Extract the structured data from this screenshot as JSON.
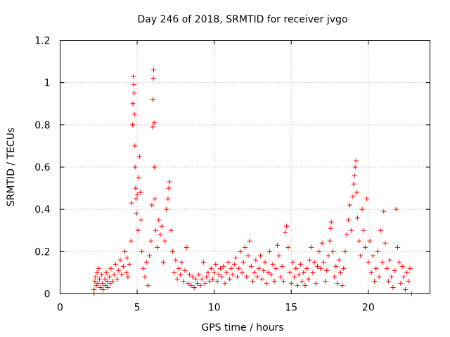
{
  "chart_data": {
    "type": "scatter",
    "title": "Day 246 of 2018, SRMTID for receiver jvgo",
    "xlabel": "GPS time / hours",
    "ylabel": "SRMTID / TECUs",
    "xlim": [
      0,
      24
    ],
    "ylim": [
      0,
      1.2
    ],
    "xticks": [
      0,
      5,
      10,
      15,
      20
    ],
    "xtick_labels": [
      "0",
      "5",
      "10",
      "15",
      "20"
    ],
    "yticks": [
      0,
      0.2,
      0.4,
      0.6,
      0.8,
      1,
      1.2
    ],
    "ytick_labels": [
      "0",
      "0.2",
      "0.4",
      "0.6",
      "0.8",
      "1",
      "1.2"
    ],
    "grid": true,
    "legend": false,
    "marker": "plus",
    "series": [
      {
        "name": "SRMTID",
        "color": "#ff0000",
        "points": [
          [
            2.2,
            0.0
          ],
          [
            2.2,
            0.02
          ],
          [
            2.25,
            0.06
          ],
          [
            2.3,
            0.08
          ],
          [
            2.35,
            0.04
          ],
          [
            2.4,
            0.1
          ],
          [
            2.45,
            0.05
          ],
          [
            2.5,
            0.12
          ],
          [
            2.55,
            0.07
          ],
          [
            2.6,
            0.03
          ],
          [
            2.7,
            0.09
          ],
          [
            2.75,
            0.05
          ],
          [
            2.8,
            0.02
          ],
          [
            2.9,
            0.07
          ],
          [
            2.95,
            0.04
          ],
          [
            3.0,
            0.1
          ],
          [
            3.05,
            0.06
          ],
          [
            3.1,
            0.03
          ],
          [
            3.2,
            0.08
          ],
          [
            3.25,
            0.05
          ],
          [
            3.3,
            0.12
          ],
          [
            3.4,
            0.06
          ],
          [
            3.5,
            0.09
          ],
          [
            3.6,
            0.14
          ],
          [
            3.7,
            0.07
          ],
          [
            3.8,
            0.11
          ],
          [
            3.9,
            0.16
          ],
          [
            4.0,
            0.09
          ],
          [
            4.1,
            0.13
          ],
          [
            4.2,
            0.2
          ],
          [
            4.3,
            0.1
          ],
          [
            4.35,
            0.17
          ],
          [
            4.4,
            0.08
          ],
          [
            4.5,
            0.14
          ],
          [
            4.6,
            0.25
          ],
          [
            4.65,
            0.43
          ],
          [
            4.7,
            0.8
          ],
          [
            4.72,
            0.9
          ],
          [
            4.75,
            1.03
          ],
          [
            4.78,
            0.99
          ],
          [
            4.8,
            0.95
          ],
          [
            4.82,
            0.85
          ],
          [
            4.85,
            0.7
          ],
          [
            4.87,
            0.6
          ],
          [
            4.9,
            0.5
          ],
          [
            4.92,
            0.45
          ],
          [
            4.95,
            0.38
          ],
          [
            5.0,
            0.47
          ],
          [
            5.05,
            0.3
          ],
          [
            5.1,
            0.55
          ],
          [
            5.15,
            0.65
          ],
          [
            5.2,
            0.48
          ],
          [
            5.25,
            0.35
          ],
          [
            5.3,
            0.2
          ],
          [
            5.4,
            0.12
          ],
          [
            5.5,
            0.08
          ],
          [
            5.6,
            0.15
          ],
          [
            5.7,
            0.04
          ],
          [
            5.8,
            0.18
          ],
          [
            5.9,
            0.25
          ],
          [
            5.95,
            0.42
          ],
          [
            6.0,
            0.79
          ],
          [
            6.02,
            0.92
          ],
          [
            6.05,
            1.02
          ],
          [
            6.07,
            1.06
          ],
          [
            6.1,
            0.81
          ],
          [
            6.12,
            0.6
          ],
          [
            6.15,
            0.45
          ],
          [
            6.2,
            0.3
          ],
          [
            6.3,
            0.22
          ],
          [
            6.4,
            0.35
          ],
          [
            6.5,
            0.28
          ],
          [
            6.6,
            0.32
          ],
          [
            6.7,
            0.15
          ],
          [
            6.8,
            0.25
          ],
          [
            6.9,
            0.4
          ],
          [
            7.0,
            0.45
          ],
          [
            7.05,
            0.5
          ],
          [
            7.1,
            0.53
          ],
          [
            7.2,
            0.3
          ],
          [
            7.3,
            0.2
          ],
          [
            7.4,
            0.1
          ],
          [
            7.5,
            0.16
          ],
          [
            7.6,
            0.07
          ],
          [
            7.7,
            0.12
          ],
          [
            7.8,
            0.09
          ],
          [
            7.9,
            0.15
          ],
          [
            8.0,
            0.06
          ],
          [
            8.1,
            0.11
          ],
          [
            8.2,
            0.22
          ],
          [
            8.3,
            0.05
          ],
          [
            8.4,
            0.09
          ],
          [
            8.5,
            0.04
          ],
          [
            8.6,
            0.08
          ],
          [
            8.7,
            0.03
          ],
          [
            8.8,
            0.07
          ],
          [
            8.9,
            0.05
          ],
          [
            9.0,
            0.09
          ],
          [
            9.1,
            0.04
          ],
          [
            9.2,
            0.07
          ],
          [
            9.3,
            0.15
          ],
          [
            9.4,
            0.05
          ],
          [
            9.5,
            0.08
          ],
          [
            9.6,
            0.1
          ],
          [
            9.7,
            0.06
          ],
          [
            9.8,
            0.12
          ],
          [
            9.9,
            0.07
          ],
          [
            10.0,
            0.1
          ],
          [
            10.1,
            0.14
          ],
          [
            10.2,
            0.06
          ],
          [
            10.3,
            0.09
          ],
          [
            10.4,
            0.12
          ],
          [
            10.5,
            0.08
          ],
          [
            10.6,
            0.13
          ],
          [
            10.7,
            0.05
          ],
          [
            10.8,
            0.1
          ],
          [
            10.9,
            0.15
          ],
          [
            11.0,
            0.07
          ],
          [
            11.1,
            0.12
          ],
          [
            11.2,
            0.09
          ],
          [
            11.3,
            0.14
          ],
          [
            11.4,
            0.17
          ],
          [
            11.5,
            0.08
          ],
          [
            11.6,
            0.12
          ],
          [
            11.7,
            0.2
          ],
          [
            11.8,
            0.1
          ],
          [
            11.9,
            0.15
          ],
          [
            12.0,
            0.22
          ],
          [
            12.1,
            0.08
          ],
          [
            12.2,
            0.18
          ],
          [
            12.3,
            0.25
          ],
          [
            12.4,
            0.13
          ],
          [
            12.5,
            0.06
          ],
          [
            12.6,
            0.1
          ],
          [
            12.7,
            0.16
          ],
          [
            12.8,
            0.08
          ],
          [
            12.9,
            0.12
          ],
          [
            13.0,
            0.18
          ],
          [
            13.1,
            0.07
          ],
          [
            13.2,
            0.11
          ],
          [
            13.3,
            0.15
          ],
          [
            13.4,
            0.05
          ],
          [
            13.5,
            0.1
          ],
          [
            13.6,
            0.2
          ],
          [
            13.7,
            0.09
          ],
          [
            13.8,
            0.14
          ],
          [
            13.9,
            0.06
          ],
          [
            14.0,
            0.12
          ],
          [
            14.1,
            0.23
          ],
          [
            14.2,
            0.18
          ],
          [
            14.3,
            0.08
          ],
          [
            14.4,
            0.13
          ],
          [
            14.5,
            0.06
          ],
          [
            14.6,
            0.29
          ],
          [
            14.7,
            0.32
          ],
          [
            14.8,
            0.22
          ],
          [
            14.9,
            0.1
          ],
          [
            15.0,
            0.05
          ],
          [
            15.1,
            0.15
          ],
          [
            15.2,
            0.08
          ],
          [
            15.3,
            0.12
          ],
          [
            15.4,
            0.04
          ],
          [
            15.5,
            0.09
          ],
          [
            15.6,
            0.14
          ],
          [
            15.7,
            0.06
          ],
          [
            15.8,
            0.1
          ],
          [
            15.9,
            0.04
          ],
          [
            16.0,
            0.12
          ],
          [
            16.1,
            0.07
          ],
          [
            16.2,
            0.16
          ],
          [
            16.3,
            0.22
          ],
          [
            16.4,
            0.1
          ],
          [
            16.5,
            0.15
          ],
          [
            16.6,
            0.05
          ],
          [
            16.7,
            0.13
          ],
          [
            16.8,
            0.2
          ],
          [
            16.9,
            0.12
          ],
          [
            17.0,
            0.24
          ],
          [
            17.1,
            0.15
          ],
          [
            17.2,
            0.06
          ],
          [
            17.3,
            0.11
          ],
          [
            17.4,
            0.18
          ],
          [
            17.5,
            0.25
          ],
          [
            17.55,
            0.31
          ],
          [
            17.6,
            0.34
          ],
          [
            17.7,
            0.2
          ],
          [
            17.8,
            0.08
          ],
          [
            17.9,
            0.13
          ],
          [
            18.0,
            0.05
          ],
          [
            18.1,
            0.16
          ],
          [
            18.2,
            0.1
          ],
          [
            18.3,
            0.04
          ],
          [
            18.4,
            0.12
          ],
          [
            18.5,
            0.2
          ],
          [
            18.6,
            0.28
          ],
          [
            18.7,
            0.35
          ],
          [
            18.8,
            0.42
          ],
          [
            18.9,
            0.3
          ],
          [
            19.0,
            0.46
          ],
          [
            19.05,
            0.52
          ],
          [
            19.1,
            0.56
          ],
          [
            19.15,
            0.6
          ],
          [
            19.2,
            0.63
          ],
          [
            19.25,
            0.48
          ],
          [
            19.3,
            0.36
          ],
          [
            19.4,
            0.25
          ],
          [
            19.5,
            0.18
          ],
          [
            19.6,
            0.4
          ],
          [
            19.7,
            0.3
          ],
          [
            19.8,
            0.22
          ],
          [
            19.9,
            0.45
          ],
          [
            20.0,
            0.15
          ],
          [
            20.1,
            0.25
          ],
          [
            20.2,
            0.1
          ],
          [
            20.3,
            0.18
          ],
          [
            20.4,
            0.06
          ],
          [
            20.5,
            0.12
          ],
          [
            20.6,
            0.2
          ],
          [
            20.7,
            0.08
          ],
          [
            20.8,
            0.3
          ],
          [
            20.9,
            0.15
          ],
          [
            21.0,
            0.39
          ],
          [
            21.1,
            0.24
          ],
          [
            21.2,
            0.12
          ],
          [
            21.3,
            0.06
          ],
          [
            21.4,
            0.16
          ],
          [
            21.5,
            0.08
          ],
          [
            21.6,
            0.03
          ],
          [
            21.7,
            0.11
          ],
          [
            21.8,
            0.4
          ],
          [
            21.9,
            0.22
          ],
          [
            22.0,
            0.15
          ],
          [
            22.1,
            0.05
          ],
          [
            22.2,
            0.13
          ],
          [
            22.3,
            0.08
          ],
          [
            22.4,
            0.02
          ],
          [
            22.5,
            0.1
          ],
          [
            22.6,
            0.06
          ],
          [
            22.7,
            0.12
          ],
          [
            22.8,
            0.0
          ]
        ]
      }
    ]
  }
}
